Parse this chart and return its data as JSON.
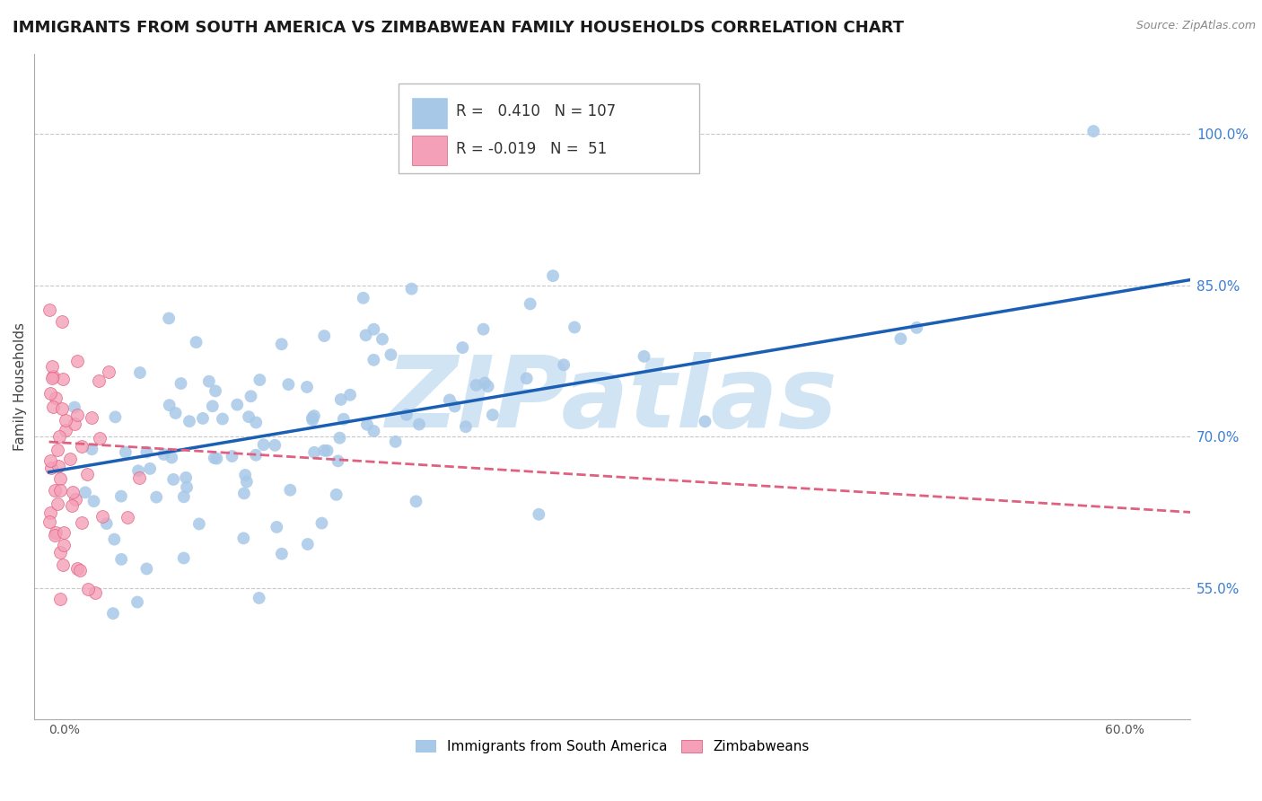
{
  "title": "IMMIGRANTS FROM SOUTH AMERICA VS ZIMBABWEAN FAMILY HOUSEHOLDS CORRELATION CHART",
  "source": "Source: ZipAtlas.com",
  "ylabel": "Family Households",
  "right_yticks": [
    55.0,
    70.0,
    85.0,
    100.0
  ],
  "right_ytick_labels": [
    "55.0%",
    "70.0%",
    "85.0%",
    "100.0%"
  ],
  "blue_R": 0.41,
  "blue_N": 107,
  "pink_R": -0.019,
  "pink_N": 51,
  "blue_color": "#a8c8e8",
  "blue_line_color": "#1a5fb4",
  "pink_color": "#f4a0b8",
  "pink_line_color": "#e06080",
  "watermark": "ZIPatlas",
  "watermark_color": "#d0e4f4",
  "legend_blue_label": "Immigrants from South America",
  "legend_pink_label": "Zimbabweans",
  "background_color": "#ffffff",
  "grid_color": "#c8c8c8",
  "title_fontsize": 13,
  "axis_fontsize": 11,
  "right_tick_color": "#3a7fd4",
  "blue_seed": 42,
  "pink_seed": 7
}
